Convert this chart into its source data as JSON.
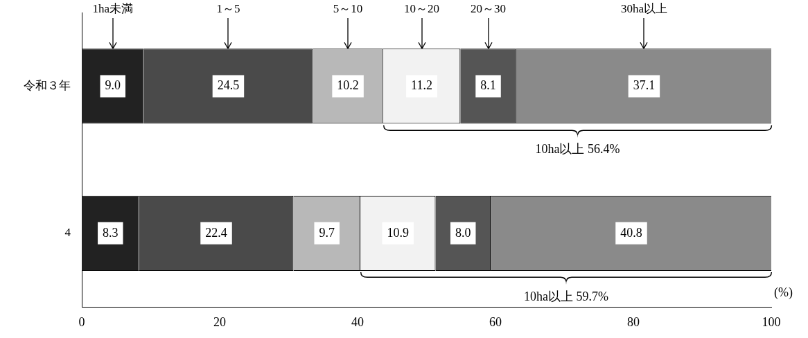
{
  "chart_data": {
    "type": "bar",
    "orientation": "horizontal",
    "stacked": true,
    "categories": [
      "令和３年",
      "4"
    ],
    "xlabel": "(%)",
    "xlim": [
      0,
      100
    ],
    "xticks": [
      0,
      20,
      40,
      60,
      80,
      100
    ],
    "grid": false,
    "legend": false,
    "series": [
      {
        "name": "1ha未満",
        "color": "#222222",
        "values": [
          9.0,
          8.3
        ],
        "value_labels": [
          "9.0",
          "8.3"
        ]
      },
      {
        "name": "1～5",
        "color": "#4a4a4a",
        "values": [
          24.5,
          22.4
        ],
        "value_labels": [
          "24.5",
          "22.4"
        ]
      },
      {
        "name": "5～10",
        "color": "#b8b8b8",
        "values": [
          10.2,
          9.7
        ],
        "value_labels": [
          "10.2",
          "9.7"
        ]
      },
      {
        "name": "10～20",
        "color": "#f2f2f2",
        "values": [
          11.2,
          10.9
        ],
        "value_labels": [
          "11.2",
          "10.9"
        ]
      },
      {
        "name": "20～30",
        "color": "#555555",
        "values": [
          8.1,
          8.0
        ],
        "value_labels": [
          "8.1",
          "8.0"
        ]
      },
      {
        "name": "30ha以上",
        "color": "#8a8a8a",
        "values": [
          37.1,
          40.8
        ],
        "value_labels": [
          "37.1",
          "40.8"
        ]
      }
    ],
    "annotations": [
      "10ha以上 56.4%",
      "10ha以上 59.7%"
    ]
  }
}
